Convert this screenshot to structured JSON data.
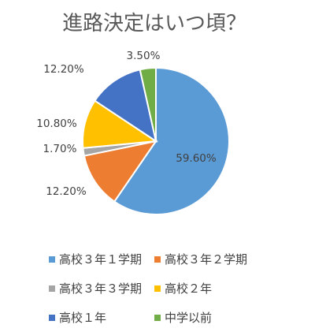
{
  "chart_data": {
    "type": "pie",
    "title": "進路決定はいつ頃？",
    "slices": [
      {
        "label": "高校３年１学期",
        "value": 59.6,
        "value_label": "59.60%",
        "color": "#5b9bd5"
      },
      {
        "label": "高校３年２学期",
        "value": 12.2,
        "value_label": "12.20%",
        "color": "#ed7d31"
      },
      {
        "label": "高校３年３学期",
        "value": 1.7,
        "value_label": "1.70%",
        "color": "#a5a5a5"
      },
      {
        "label": "高校２年",
        "value": 10.8,
        "value_label": "10.80%",
        "color": "#ffc000"
      },
      {
        "label": "高校１年",
        "value": 12.2,
        "value_label": "12.20%",
        "color": "#4472c4"
      },
      {
        "label": "中学以前",
        "value": 3.5,
        "value_label": "3.50%",
        "color": "#70ad47"
      }
    ],
    "legend_position": "bottom",
    "start_angle_deg": 0,
    "direction": "clockwise"
  }
}
